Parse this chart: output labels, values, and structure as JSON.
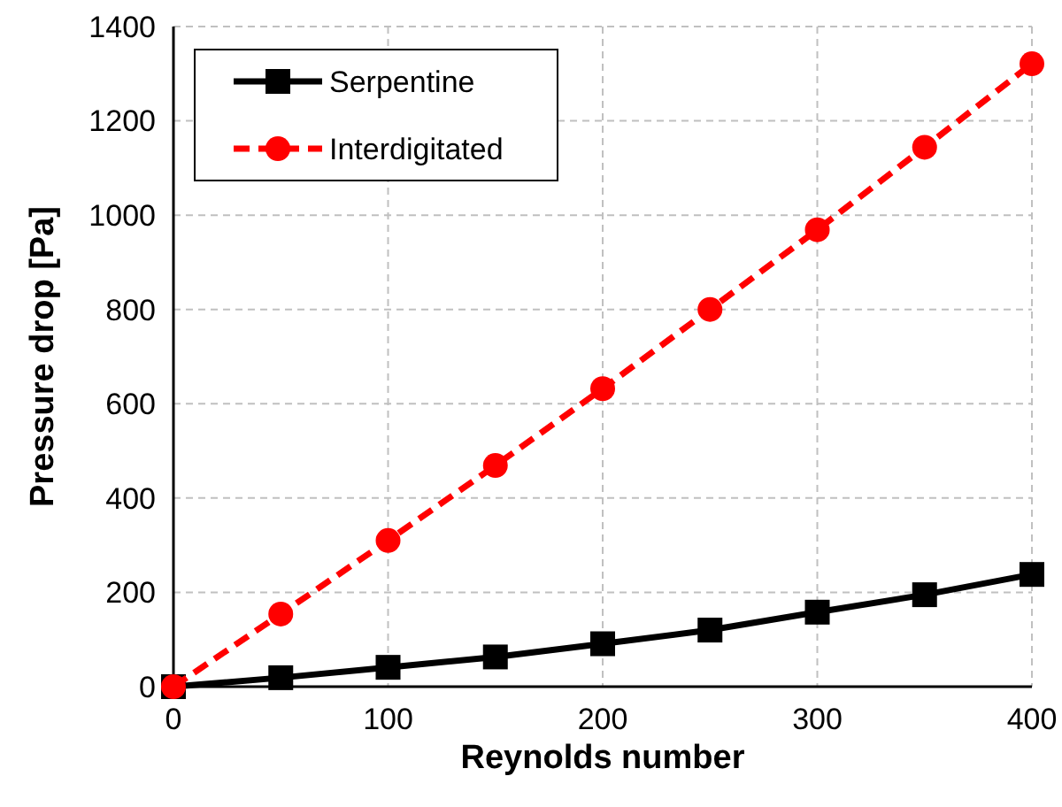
{
  "chart_data": {
    "type": "line",
    "xlabel": "Reynolds number",
    "ylabel": "Pressure drop [Pa]",
    "x": [
      0,
      50,
      100,
      150,
      200,
      250,
      300,
      350,
      400
    ],
    "series": [
      {
        "name": "Serpentine",
        "color": "#000000",
        "marker": "square",
        "line_style": "solid",
        "values": [
          0,
          19,
          41,
          63,
          91,
          120,
          158,
          195,
          238
        ]
      },
      {
        "name": "Interdigitated",
        "color": "#ff0000",
        "marker": "circle",
        "line_style": "dashed",
        "values": [
          0,
          154,
          310,
          469,
          632,
          800,
          969,
          1144,
          1321
        ]
      }
    ],
    "xlim": [
      0,
      400
    ],
    "xticks": [
      0,
      100,
      200,
      300,
      400
    ],
    "ylim": [
      0,
      1400
    ],
    "yticks": [
      0,
      200,
      400,
      600,
      800,
      1000,
      1200,
      1400
    ],
    "grid": true,
    "legend": "top left"
  }
}
